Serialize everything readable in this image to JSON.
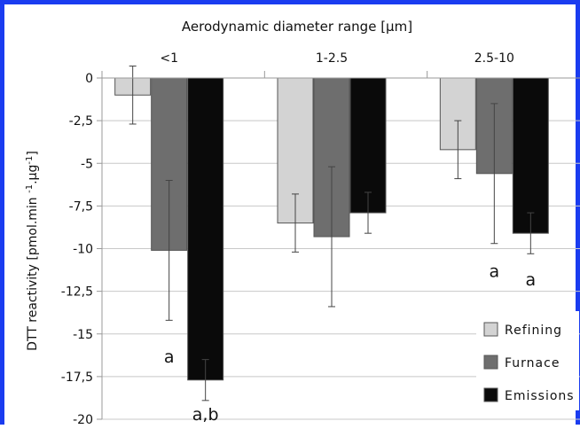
{
  "chart_data": {
    "type": "bar",
    "title": "Aerodynamic diameter range [µm]",
    "ylabel": "DTT reactivity [pmol.min -1.µg-1]",
    "ylabel_parts": [
      "DTT reactivity [pmol.min ",
      "-1",
      ".µg",
      "-1",
      "]"
    ],
    "categories": [
      "<1",
      "1-2.5",
      "2.5-10"
    ],
    "ylim": [
      -20,
      0
    ],
    "yticks": [
      0,
      -2.5,
      -5,
      -7.5,
      -10,
      -12.5,
      -15,
      -17.5,
      -20
    ],
    "ytick_labels": [
      "0",
      "-2,5",
      "-5",
      "-7,5",
      "-10",
      "-12,5",
      "-15",
      "-17,5",
      "-20"
    ],
    "grid": "horizontal",
    "legend_position": "bottom-right",
    "series": [
      {
        "name": "Refining",
        "color": "#d3d3d3",
        "values": [
          -1.0,
          -8.5,
          -4.2
        ],
        "errors": [
          1.7,
          1.7,
          1.7
        ]
      },
      {
        "name": "Furnace",
        "color": "#6e6e6e",
        "values": [
          -10.1,
          -9.3,
          -5.6
        ],
        "errors": [
          4.1,
          4.1,
          4.1
        ]
      },
      {
        "name": "Emissions",
        "color": "#0a0a0a",
        "values": [
          -17.7,
          -7.9,
          -9.1
        ],
        "errors": [
          1.2,
          1.2,
          1.2
        ]
      }
    ],
    "annotations": [
      {
        "category": 0,
        "series": 1,
        "text": "a",
        "y": -16.3
      },
      {
        "category": 0,
        "series": 2,
        "text": "a,b",
        "y": -19.7
      },
      {
        "category": 2,
        "series": 1,
        "text": "a",
        "y": -11.3
      },
      {
        "category": 2,
        "series": 2,
        "text": "a",
        "y": -11.8
      }
    ]
  }
}
